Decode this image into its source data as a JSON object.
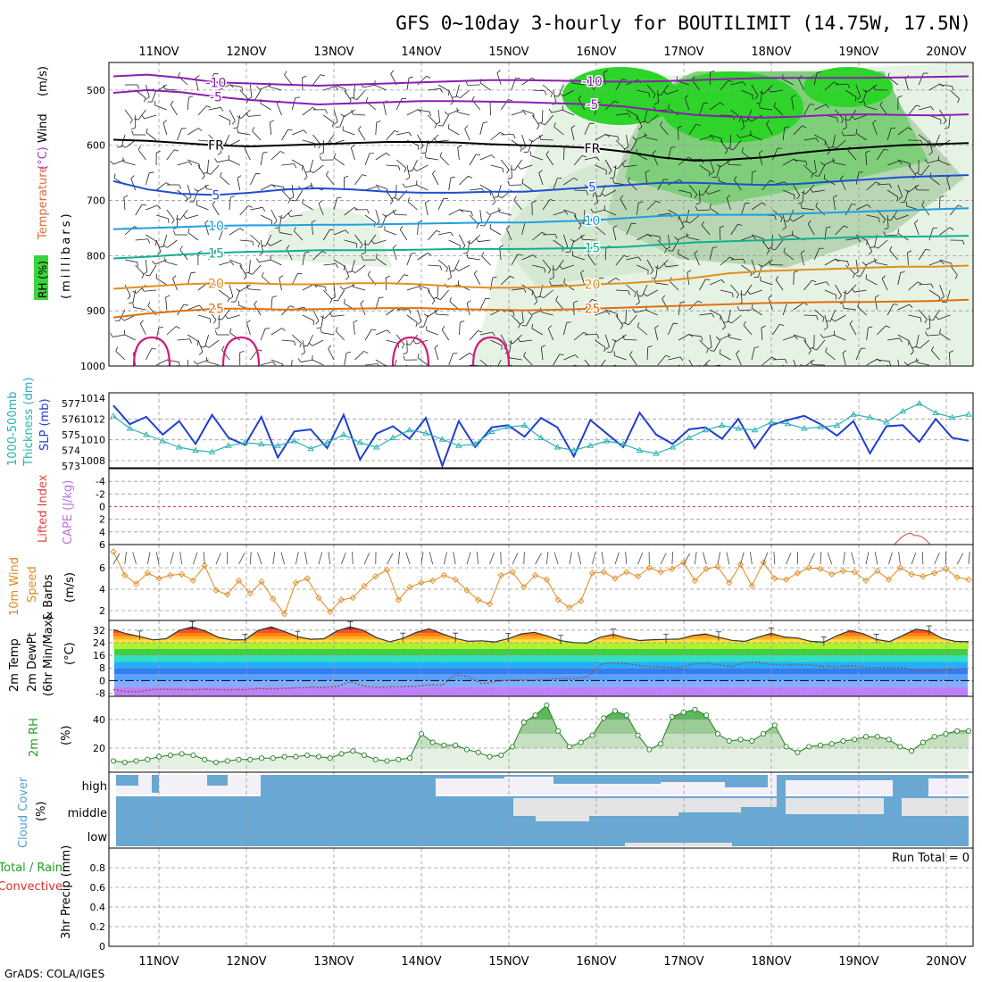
{
  "chart_data": {
    "type": "line",
    "title": "GFS 0~10day 3-hourly for BOUTILIMIT (14.75W, 17.5N)",
    "footer": "GrADS: COLA/IGES",
    "dates": [
      "11NOV",
      "12NOV",
      "13NOV",
      "14NOV",
      "15NOV",
      "16NOV",
      "17NOV",
      "18NOV",
      "19NOV",
      "20NOV"
    ],
    "panels": {
      "upper_air": {
        "ylabels": [
          "Wind",
          "(m/s)",
          "Temperature",
          "(°C)",
          "RH (%)",
          "(millibars)"
        ],
        "yticks": [
          "500",
          "600",
          "700",
          "800",
          "900",
          "1000"
        ],
        "ylim": [
          1000,
          450
        ],
        "temperature_contours": [
          {
            "label": "-10",
            "color": "#8a1fb0",
            "y": [
              475,
              472,
              478,
              486,
              488,
              490,
              492,
              490,
              488,
              486,
              484,
              482,
              482,
              483,
              484,
              485,
              484,
              482,
              480,
              478,
              478,
              478,
              478,
              477,
              476,
              475
            ]
          },
          {
            "label": "-5",
            "color": "#8a1fb0",
            "y": [
              505,
              500,
              504,
              512,
              518,
              522,
              526,
              524,
              522,
              520,
              520,
              521,
              522,
              524,
              526,
              530,
              538,
              545,
              548,
              550,
              548,
              545,
              544,
              545,
              546,
              544
            ]
          },
          {
            "label": "FR",
            "color": "#000000",
            "y": [
              590,
              592,
              596,
              600,
              602,
              600,
              598,
              596,
              594,
              594,
              595,
              598,
              600,
              602,
              605,
              612,
              622,
              628,
              626,
              622,
              614,
              608,
              604,
              600,
              598,
              596
            ]
          },
          {
            "label": "5",
            "color": "#1f4fd0",
            "y": [
              665,
              680,
              688,
              690,
              686,
              680,
              678,
              680,
              684,
              686,
              686,
              684,
              684,
              680,
              676,
              672,
              668,
              668,
              670,
              672,
              670,
              666,
              662,
              658,
              656,
              654
            ]
          },
          {
            "label": "10",
            "color": "#1f9fe0",
            "y": [
              752,
              750,
              748,
              746,
              745,
              745,
              744,
              744,
              743,
              742,
              741,
              740,
              740,
              738,
              736,
              732,
              728,
              726,
              726,
              726,
              724,
              722,
              720,
              718,
              716,
              714
            ]
          },
          {
            "label": "15",
            "color": "#10b090",
            "y": [
              805,
              802,
              798,
              795,
              793,
              792,
              790,
              790,
              790,
              789,
              788,
              788,
              788,
              787,
              786,
              784,
              780,
              776,
              774,
              772,
              770,
              768,
              766,
              766,
              765,
              764
            ]
          },
          {
            "label": "20",
            "color": "#e09020",
            "y": [
              860,
              856,
              852,
              850,
              850,
              852,
              852,
              850,
              850,
              852,
              856,
              858,
              858,
              856,
              852,
              850,
              846,
              840,
              832,
              828,
              826,
              824,
              822,
              820,
              820,
              818
            ]
          },
          {
            "label": "25",
            "color": "#e07010",
            "y": [
              912,
              905,
              900,
              896,
              896,
              898,
              897,
              896,
              895,
              895,
              897,
              898,
              899,
              898,
              896,
              894,
              892,
              890,
              888,
              886,
              885,
              884,
              884,
              883,
              882,
              880
            ]
          }
        ],
        "rh_humid_period": [
          "15NOV",
          "20NOV"
        ]
      },
      "pressure": {
        "ylabels": [
          "1000-500mb",
          "Thickness (dm)",
          "SLP (mb)"
        ],
        "left_ticks": [
          "577",
          "576",
          "575",
          "574",
          "573"
        ],
        "right_ticks": [
          "1014",
          "1012",
          "1010",
          "1008"
        ],
        "slp": [
          1013.3,
          1011.5,
          1012.2,
          1010.5,
          1011.8,
          1009.6,
          1012.4,
          1010.2,
          1009.5,
          1012.2,
          1008.3,
          1010.8,
          1011.0,
          1009.2,
          1012.4,
          1008.1,
          1010.6,
          1011.3,
          1010.1,
          1012.1,
          1007.5,
          1011.8,
          1009.3,
          1011.2,
          1011.4,
          1010.3,
          1012.1,
          1011.2,
          1008.4,
          1011.9,
          1010.6,
          1009.3,
          1012.6,
          1010.5,
          1009.6,
          1011.0,
          1011.2,
          1010.1,
          1012.0,
          1009.2,
          1011.4,
          1011.9,
          1012.3,
          1011.5,
          1010.4,
          1011.8,
          1008.7,
          1011.3,
          1011.4,
          1009.8,
          1012.0,
          1010.2,
          1009.9
        ],
        "thickness": [
          576.2,
          575.4,
          575.0,
          574.6,
          574.2,
          574.0,
          573.9,
          574.3,
          574.5,
          574.4,
          574.3,
          574.6,
          574.1,
          574.5,
          575.0,
          574.5,
          574.2,
          574.8,
          575.3,
          575.1,
          574.7,
          574.3,
          574.4,
          575.2,
          575.5,
          575.6,
          574.8,
          574.2,
          574.0,
          574.3,
          574.6,
          574.4,
          574.0,
          573.8,
          574.2,
          574.8,
          575.3,
          575.6,
          575.4,
          575.3,
          575.8,
          575.7,
          575.4,
          575.5,
          575.6,
          576.3,
          576.1,
          575.8,
          576.5,
          577.0,
          576.4,
          576.1,
          576.3
        ]
      },
      "stability": {
        "ylabels": [
          "Lifted Index",
          "CAPE (J/kg)"
        ],
        "yticks": [
          "-4",
          "-2",
          "0",
          "2",
          "4",
          "6"
        ],
        "ylim": [
          -6,
          6
        ],
        "cape_blip_date": "19NOV"
      },
      "wind10m": {
        "ylabels": [
          "10m Wind",
          "Speed",
          "& Barbs",
          "(m/s)"
        ],
        "yticks": [
          "2",
          "4",
          "6"
        ],
        "ylim": [
          1.5,
          8
        ],
        "speed": [
          7.5,
          5.3,
          4.5,
          5.5,
          5.0,
          5.3,
          5.4,
          4.8,
          6.2,
          3.9,
          3.5,
          4.8,
          3.6,
          4.7,
          3.1,
          1.7,
          4.6,
          5.0,
          3.2,
          1.9,
          3.0,
          3.2,
          4.3,
          5.2,
          5.8,
          3.0,
          4.2,
          4.6,
          4.8,
          5.3,
          4.9,
          3.9,
          3.0,
          2.6,
          5.3,
          5.6,
          4.2,
          5.3,
          4.9,
          3.0,
          2.3,
          2.9,
          5.5,
          5.6,
          5.0,
          5.6,
          5.2,
          6.0,
          5.6,
          5.9,
          6.5,
          4.8,
          5.9,
          6.1,
          4.6,
          6.3,
          4.3,
          6.5,
          5.0,
          4.9,
          5.5,
          6.0,
          5.9,
          5.4,
          5.7,
          5.6,
          4.8,
          5.7,
          4.9,
          6.0,
          5.4,
          5.2,
          5.5,
          5.9,
          5.1,
          4.9
        ]
      },
      "temp2m": {
        "ylabels": [
          "2m Temp",
          "2m DewPt",
          "(6hr Min/Max)",
          "(°C)"
        ],
        "yticks": [
          "32",
          "24",
          "16",
          "8",
          "0",
          "-8"
        ],
        "ylim": [
          -10,
          37
        ],
        "temp": [
          32.3,
          29.7,
          28.0,
          25.8,
          26.5,
          31.8,
          34.0,
          31.4,
          27.4,
          25.8,
          25.9,
          31.8,
          34.0,
          31.1,
          27.8,
          26.2,
          26.5,
          31.5,
          34.0,
          31.9,
          27.2,
          24.6,
          26.7,
          30.5,
          32.8,
          29.7,
          26.7,
          24.9,
          25.2,
          24.5,
          26.6,
          29.6,
          30.6,
          28.3,
          25.3,
          24.1,
          23.8,
          27.5,
          29.3,
          26.9,
          25.4,
          25.9,
          26.1,
          26.3,
          28.5,
          29.6,
          27.5,
          25.5,
          24.8,
          27.5,
          29.9,
          27.6,
          27.0,
          24.9,
          24.3,
          28.5,
          31.7,
          29.7,
          26.0,
          24.7,
          28.6,
          32.6,
          31.3,
          26.7,
          24.8,
          24.6
        ],
        "dewpt": [
          -5.7,
          -7.0,
          -7.0,
          -5.7,
          -5.5,
          -5.7,
          -5.8,
          -5.5,
          -5.8,
          -5.8,
          -5.8,
          -5.0,
          -5.3,
          -5.0,
          -4.5,
          -4.2,
          -4.2,
          -3.8,
          -0.6,
          -3.4,
          -4.3,
          -4.0,
          -3.8,
          -3.6,
          -2.7,
          -3.0,
          4.0,
          2.4,
          -2.0,
          -0.7,
          0.2,
          0.4,
          0.3,
          0.7,
          1.4,
          1.2,
          2.3,
          10.3,
          11.4,
          10.8,
          9.5,
          8.7,
          8.6,
          8.0,
          10.4,
          11.3,
          9.8,
          8.9,
          11.4,
          11.8,
          10.1,
          9.8,
          10.2,
          9.9,
          8.9,
          8.8,
          9.4,
          8.5,
          8.1,
          8.4,
          8.3,
          6.4,
          6.3,
          6.6,
          7.4,
          7.9
        ]
      },
      "rh2m": {
        "ylabels": [
          "2m RH",
          "(%)"
        ],
        "yticks": [
          "20",
          "40"
        ],
        "ylim": [
          5,
          55
        ],
        "rh": [
          11,
          10,
          11,
          12,
          14,
          15,
          16,
          15,
          12,
          10,
          11,
          12,
          12,
          13,
          13,
          14,
          14,
          15,
          14,
          13,
          16,
          18,
          15,
          12,
          11,
          12,
          13,
          30,
          24,
          22,
          22,
          19,
          17,
          14,
          15,
          21,
          38,
          43,
          50,
          32,
          21,
          24,
          29,
          41,
          46,
          43,
          29,
          19,
          23,
          42,
          45,
          47,
          43,
          30,
          25,
          26,
          25,
          30,
          36,
          21,
          17,
          21,
          22,
          23,
          25,
          26,
          28,
          28,
          26,
          21,
          18,
          24,
          28,
          30,
          32,
          32
        ]
      },
      "cloud": {
        "ylabels": [
          "Cloud Cover",
          "(%)"
        ],
        "levels": [
          "high",
          "middle",
          "low"
        ]
      },
      "precip": {
        "ylabels": [
          "Total / Rain",
          "Convective",
          "3hr Precip (mm)"
        ],
        "yticks": [
          "0",
          "0.2",
          "0.4",
          "0.6",
          "0.8"
        ],
        "ylim": [
          0,
          1
        ],
        "run_total": "Run Total = 0"
      }
    }
  }
}
